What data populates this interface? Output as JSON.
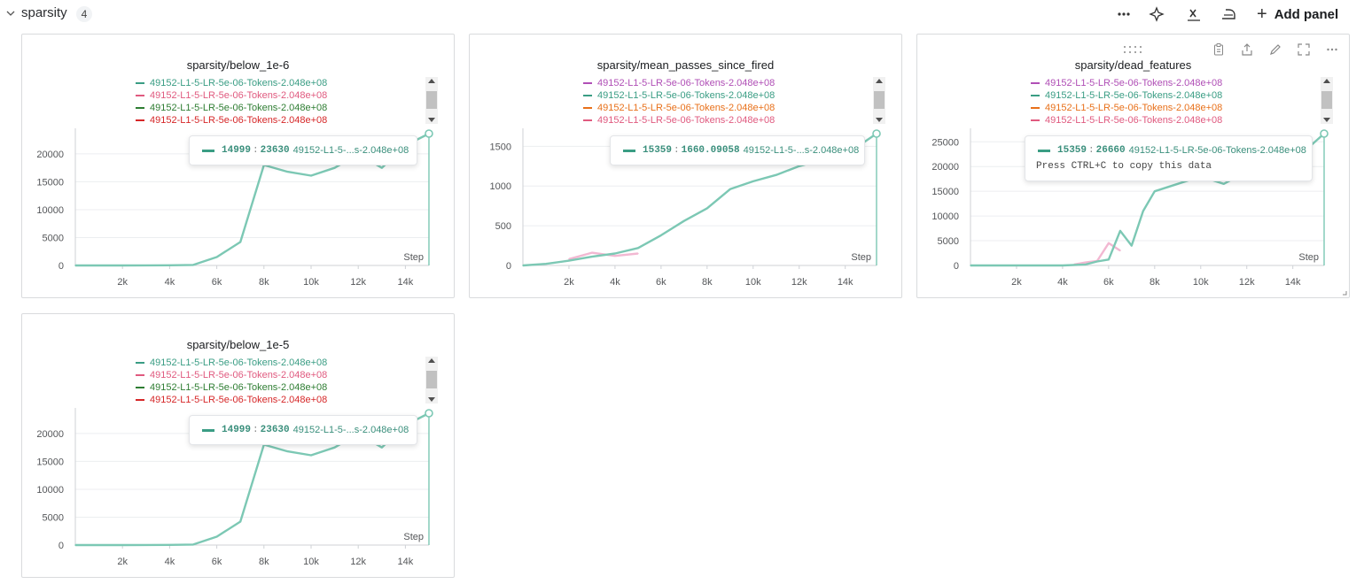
{
  "section": {
    "title": "sparsity",
    "count": "4",
    "add_panel_label": "Add panel"
  },
  "colors": {
    "teal": "#7cc8b4",
    "teal_dark": "#3a8f7c",
    "pink": "#e377c2",
    "red": "#d62728",
    "green": "#2e7d32",
    "orange": "#e8701a",
    "magenta": "#b04fb6",
    "rose": "#e05a7f"
  },
  "panels": [
    {
      "title": "sparsity/below_1e-6",
      "legend": [
        {
          "label": "49152-L1-5-LR-5e-06-Tokens-2.048e+08",
          "color": "#3a9d84"
        },
        {
          "label": "49152-L1-5-LR-5e-06-Tokens-2.048e+08",
          "color": "#e05a7f"
        },
        {
          "label": "49152-L1-5-LR-5e-06-Tokens-2.048e+08",
          "color": "#2e7d32"
        },
        {
          "label": "49152-L1-5-LR-5e-06-Tokens-2.048e+08",
          "color": "#d62728"
        }
      ],
      "tooltip": {
        "step": "14999",
        "value": "23630",
        "run": "49152-L1-5-...s-2.048e+08"
      },
      "x_label": "Step"
    },
    {
      "title": "sparsity/mean_passes_since_fired",
      "legend": [
        {
          "label": "49152-L1-5-LR-5e-06-Tokens-2.048e+08",
          "color": "#b04fb6"
        },
        {
          "label": "49152-L1-5-LR-5e-06-Tokens-2.048e+08",
          "color": "#3a9d84"
        },
        {
          "label": "49152-L1-5-LR-5e-06-Tokens-2.048e+08",
          "color": "#e8701a"
        },
        {
          "label": "49152-L1-5-LR-5e-06-Tokens-2.048e+08",
          "color": "#e05a7f"
        }
      ],
      "tooltip": {
        "step": "15359",
        "value": "1660.09058",
        "run": "49152-L1-5-...s-2.048e+08"
      },
      "x_label": "Step"
    },
    {
      "title": "sparsity/dead_features",
      "legend": [
        {
          "label": "49152-L1-5-LR-5e-06-Tokens-2.048e+08",
          "color": "#b04fb6"
        },
        {
          "label": "49152-L1-5-LR-5e-06-Tokens-2.048e+08",
          "color": "#3a9d84"
        },
        {
          "label": "49152-L1-5-LR-5e-06-Tokens-2.048e+08",
          "color": "#e8701a"
        },
        {
          "label": "49152-L1-5-LR-5e-06-Tokens-2.048e+08",
          "color": "#e05a7f"
        }
      ],
      "tooltip": {
        "step": "15359",
        "value": "26660",
        "run": "49152-L1-5-LR-5e-06-Tokens-2.048e+08",
        "hint": "Press CTRL+C to copy this data"
      },
      "x_label": "Step"
    },
    {
      "title": "sparsity/below_1e-5",
      "legend": [
        {
          "label": "49152-L1-5-LR-5e-06-Tokens-2.048e+08",
          "color": "#3a9d84"
        },
        {
          "label": "49152-L1-5-LR-5e-06-Tokens-2.048e+08",
          "color": "#e05a7f"
        },
        {
          "label": "49152-L1-5-LR-5e-06-Tokens-2.048e+08",
          "color": "#2e7d32"
        },
        {
          "label": "49152-L1-5-LR-5e-06-Tokens-2.048e+08",
          "color": "#d62728"
        }
      ],
      "tooltip": {
        "step": "14999",
        "value": "23630",
        "run": "49152-L1-5-...s-2.048e+08"
      },
      "x_label": "Step"
    }
  ],
  "chart_data": [
    {
      "type": "line",
      "title": "sparsity/below_1e-6",
      "xlabel": "Step",
      "x_ticks": [
        "2k",
        "4k",
        "6k",
        "8k",
        "10k",
        "12k",
        "14k"
      ],
      "y_ticks": [
        "0",
        "5000",
        "10000",
        "15000",
        "20000"
      ],
      "xlim": [
        0,
        15000
      ],
      "ylim": [
        0,
        23630
      ],
      "series": [
        {
          "name": "49152-L1-5-LR-5e-06-Tokens-2.048e+08",
          "color": "#7cc8b4",
          "x": [
            0,
            1000,
            2000,
            3000,
            4000,
            5000,
            6000,
            7000,
            8000,
            9000,
            10000,
            11000,
            12000,
            13000,
            14000,
            14999
          ],
          "y": [
            0,
            0,
            0,
            10,
            30,
            100,
            1500,
            4200,
            18000,
            16800,
            16100,
            17500,
            20000,
            17500,
            21500,
            23630
          ]
        }
      ]
    },
    {
      "type": "line",
      "title": "sparsity/mean_passes_since_fired",
      "xlabel": "Step",
      "x_ticks": [
        "2k",
        "4k",
        "6k",
        "8k",
        "10k",
        "12k",
        "14k"
      ],
      "y_ticks": [
        "0",
        "500",
        "1000",
        "1500"
      ],
      "xlim": [
        0,
        15359
      ],
      "ylim": [
        0,
        1660.09058
      ],
      "series": [
        {
          "name": "49152-L1-5-LR-5e-06-Tokens-2.048e+08",
          "color": "#7cc8b4",
          "x": [
            0,
            1000,
            2000,
            3000,
            4000,
            5000,
            6000,
            7000,
            8000,
            9000,
            10000,
            11000,
            12000,
            13000,
            14000,
            15359
          ],
          "y": [
            0,
            20,
            60,
            110,
            150,
            220,
            380,
            560,
            720,
            960,
            1060,
            1140,
            1250,
            1330,
            1390,
            1660.09058
          ]
        },
        {
          "name": "49152-L1-5-LR-5e-06-Tokens-2.048e+08",
          "color": "#f2b8d2",
          "x": [
            2000,
            3000,
            4000,
            5000
          ],
          "y": [
            80,
            160,
            120,
            150
          ]
        }
      ]
    },
    {
      "type": "line",
      "title": "sparsity/dead_features",
      "xlabel": "Step",
      "x_ticks": [
        "2k",
        "4k",
        "6k",
        "8k",
        "10k",
        "12k",
        "14k"
      ],
      "y_ticks": [
        "0",
        "5000",
        "10000",
        "15000",
        "20000",
        "25000"
      ],
      "xlim": [
        0,
        15359
      ],
      "ylim": [
        0,
        26660
      ],
      "series": [
        {
          "name": "49152-L1-5-LR-5e-06-Tokens-2.048e+08",
          "color": "#7cc8b4",
          "x": [
            0,
            1000,
            2000,
            3000,
            4000,
            5000,
            5500,
            6000,
            6500,
            7000,
            7500,
            8000,
            9000,
            10000,
            11000,
            12000,
            13000,
            14000,
            15359
          ],
          "y": [
            0,
            0,
            0,
            0,
            0,
            200,
            800,
            1200,
            7000,
            4000,
            11000,
            15000,
            16500,
            18000,
            16500,
            19000,
            17500,
            21000,
            26660
          ]
        },
        {
          "name": "49152-L1-5-LR-5e-06-Tokens-2.048e+08",
          "color": "#f2b8d2",
          "x": [
            4500,
            5000,
            5500,
            6000,
            6500
          ],
          "y": [
            200,
            600,
            900,
            4500,
            3000
          ]
        }
      ]
    },
    {
      "type": "line",
      "title": "sparsity/below_1e-5",
      "xlabel": "Step",
      "x_ticks": [
        "2k",
        "4k",
        "6k",
        "8k",
        "10k",
        "12k",
        "14k"
      ],
      "y_ticks": [
        "0",
        "5000",
        "10000",
        "15000",
        "20000"
      ],
      "xlim": [
        0,
        15000
      ],
      "ylim": [
        0,
        23630
      ],
      "series": [
        {
          "name": "49152-L1-5-LR-5e-06-Tokens-2.048e+08",
          "color": "#7cc8b4",
          "x": [
            0,
            1000,
            2000,
            3000,
            4000,
            5000,
            6000,
            7000,
            8000,
            9000,
            10000,
            11000,
            12000,
            13000,
            14000,
            14999
          ],
          "y": [
            0,
            0,
            0,
            10,
            30,
            100,
            1500,
            4200,
            18000,
            16800,
            16100,
            17500,
            20000,
            17500,
            21500,
            23630
          ]
        }
      ]
    }
  ]
}
